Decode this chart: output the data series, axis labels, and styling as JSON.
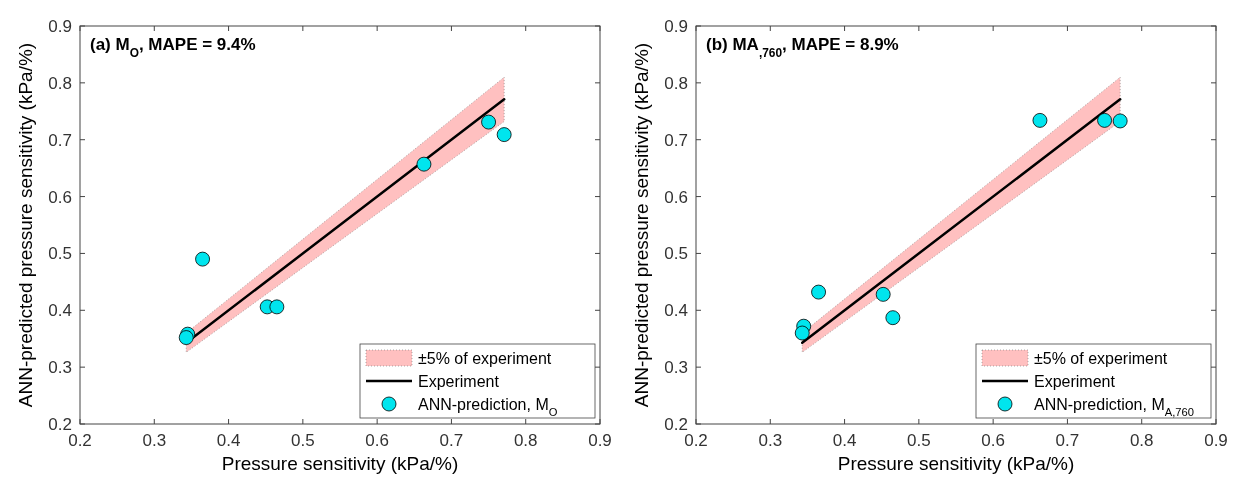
{
  "chart_data": [
    {
      "type": "scatter",
      "title": "(a) M$_{O}$, MAPE = 9.4%",
      "xlabel": "Pressure sensitivity (kPa/%)",
      "ylabel": "ANN-predicted pressure sensitivity (kPa/%)",
      "xlim": [
        0.2,
        0.9
      ],
      "ylim": [
        0.2,
        0.9
      ],
      "xticks": [
        0.2,
        0.3,
        0.4,
        0.5,
        0.6,
        0.7,
        0.8,
        0.9
      ],
      "yticks": [
        0.2,
        0.3,
        0.4,
        0.5,
        0.6,
        0.7,
        0.8,
        0.9
      ],
      "grid": false,
      "legend": "bottom right",
      "annotations": [
        "±5% of experiment"
      ],
      "series": [
        {
          "type": "line",
          "name": "Experiment",
          "color": "#000000",
          "line_style": "solid",
          "x": [
            0.343,
            0.771
          ],
          "values": [
            0.343,
            0.771
          ],
          "lower": [
            0.326,
            0.732
          ],
          "upper": [
            0.36,
            0.81
          ]
        },
        {
          "type": "scatter",
          "name": "ANN-prediction, M$_{O}$",
          "color": "#00e5ee",
          "marker": "circle",
          "x": [
            0.345,
            0.343,
            0.365,
            0.452,
            0.465,
            0.663,
            0.75,
            0.771
          ],
          "values": [
            0.358,
            0.352,
            0.49,
            0.406,
            0.406,
            0.657,
            0.731,
            0.709
          ]
        }
      ]
    },
    {
      "type": "scatter",
      "title": "(b) MA$_{,760}$, MAPE = 8.9%",
      "xlabel": "Pressure sensitivity (kPa/%)",
      "ylabel": "ANN-predicted pressure sensitivity (kPa/%)",
      "xlim": [
        0.2,
        0.9
      ],
      "ylim": [
        0.2,
        0.9
      ],
      "xticks": [
        0.2,
        0.3,
        0.4,
        0.5,
        0.6,
        0.7,
        0.8,
        0.9
      ],
      "yticks": [
        0.2,
        0.3,
        0.4,
        0.5,
        0.6,
        0.7,
        0.8,
        0.9
      ],
      "grid": false,
      "legend": "bottom right",
      "annotations": [
        "±5% of experiment"
      ],
      "series": [
        {
          "type": "line",
          "name": "Experiment",
          "color": "#000000",
          "line_style": "solid",
          "x": [
            0.343,
            0.771
          ],
          "values": [
            0.343,
            0.771
          ],
          "lower": [
            0.326,
            0.732
          ],
          "upper": [
            0.36,
            0.81
          ]
        },
        {
          "type": "scatter",
          "name": "ANN-prediction, M$_{A,760}$",
          "color": "#00e5ee",
          "marker": "circle",
          "x": [
            0.345,
            0.343,
            0.365,
            0.452,
            0.465,
            0.663,
            0.75,
            0.771
          ],
          "values": [
            0.372,
            0.36,
            0.432,
            0.428,
            0.387,
            0.734,
            0.734,
            0.733
          ]
        }
      ]
    }
  ]
}
